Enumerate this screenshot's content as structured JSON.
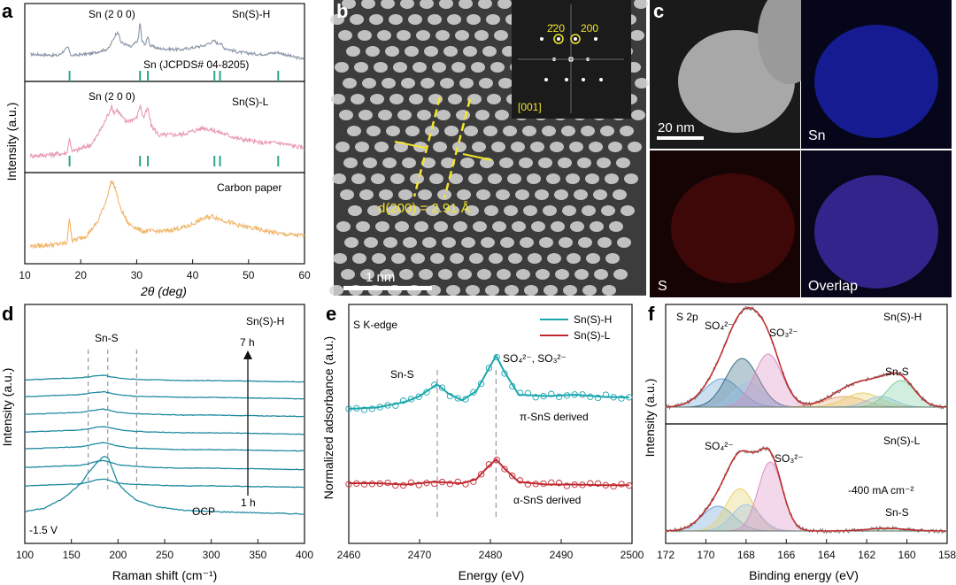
{
  "colors": {
    "bg": "#ffffff",
    "axis": "#111111",
    "dash": "#9a9a9a",
    "xrd_h": "#8a96a8",
    "xrd_l": "#e79ab0",
    "xrd_c": "#f0b466",
    "ref_ticks": "#2aa78a",
    "raman": "#1e8aa0",
    "xas_h": "#1aa6ad",
    "xas_l": "#c0282f",
    "xps_fit": "#c02a2a",
    "xps_data": "#707070",
    "comp_blue": "#6aa4d6",
    "comp_teal": "#3a6d82",
    "comp_pink": "#d98fc4",
    "comp_yellow": "#e6d06a",
    "comp_green": "#7ccfa0",
    "comp_orange": "#e7a878",
    "comp_lightblue": "#9ec4e8",
    "sn_blue": "#1a20a8",
    "s_red": "#8a1010",
    "yellow": "#f2e52d",
    "white": "#ffffff"
  },
  "panel_letters": {
    "a": "a",
    "b": "b",
    "c": "c",
    "d": "d",
    "e": "e",
    "f": "f"
  },
  "chart_data": [
    {
      "panel": "a",
      "type": "line",
      "xlabel": "2θ (deg)",
      "ylabel": "Intensity (a.u.)",
      "xlim": [
        10,
        60
      ],
      "xticks": [
        10,
        20,
        30,
        40,
        50,
        60
      ],
      "annotations": [
        "Sn (2 0 0)",
        "Sn(S)-H",
        "Sn (JCPDS# 04-8205)",
        "Sn (2 0 0)",
        "Sn(S)-L",
        "Carbon paper"
      ],
      "reference_ticks_2theta": [
        18.0,
        30.6,
        32.0,
        43.9,
        44.9,
        55.3
      ],
      "series": [
        {
          "name": "Sn(S)-H",
          "x": [
            12,
            16,
            17.8,
            18.1,
            18.5,
            22,
            25,
            26.2,
            26.6,
            27.2,
            29,
            30.3,
            30.6,
            30.9,
            31.6,
            32,
            32.4,
            34,
            38,
            42,
            43.9,
            44.5,
            44.9,
            45.5,
            48,
            52,
            55.3,
            58,
            60
          ],
          "y": [
            0.3,
            0.28,
            0.45,
            0.3,
            0.28,
            0.32,
            0.42,
            0.7,
            0.78,
            0.55,
            0.45,
            0.6,
            1.0,
            0.58,
            0.5,
            0.68,
            0.48,
            0.42,
            0.4,
            0.48,
            0.58,
            0.52,
            0.55,
            0.44,
            0.35,
            0.3,
            0.34,
            0.25,
            0.2
          ]
        },
        {
          "name": "Sn(S)-L",
          "x": [
            12,
            17.5,
            18.0,
            18.5,
            22,
            24,
            25.5,
            26,
            26.5,
            28,
            30,
            30.6,
            31.2,
            32,
            32.6,
            34,
            38,
            42,
            44,
            48,
            52,
            55.3,
            58,
            60
          ],
          "y": [
            0.05,
            0.08,
            0.28,
            0.1,
            0.2,
            0.45,
            0.7,
            0.62,
            0.66,
            0.5,
            0.55,
            0.72,
            0.55,
            0.68,
            0.45,
            0.32,
            0.33,
            0.42,
            0.38,
            0.28,
            0.22,
            0.22,
            0.18,
            0.15
          ]
        },
        {
          "name": "Carbon paper",
          "x": [
            11,
            15,
            17.5,
            18.0,
            18.5,
            21,
            23,
            24.5,
            25.5,
            26.2,
            27,
            28.5,
            31,
            35,
            39,
            42,
            43.5,
            45,
            48,
            52,
            56,
            60
          ],
          "y": [
            0.08,
            0.1,
            0.12,
            0.45,
            0.15,
            0.22,
            0.4,
            0.68,
            0.95,
            0.85,
            0.6,
            0.38,
            0.28,
            0.28,
            0.34,
            0.45,
            0.48,
            0.44,
            0.36,
            0.3,
            0.24,
            0.22
          ]
        }
      ]
    },
    {
      "panel": "d",
      "type": "line",
      "xlabel": "Raman shift (cm⁻¹)",
      "ylabel": "Intensity (a.u.)",
      "xlim": [
        100,
        400
      ],
      "xticks": [
        100,
        150,
        200,
        250,
        300,
        350,
        400
      ],
      "annotations": [
        "Sn(S)-H",
        "Sn-S",
        "7 h",
        "1 h",
        "OCP",
        "-1.5 V"
      ],
      "dashed_lines_x": [
        168,
        189,
        220
      ],
      "x": [
        100,
        120,
        140,
        160,
        168,
        175,
        185,
        190,
        200,
        210,
        220,
        240,
        270,
        300,
        350,
        400
      ],
      "series": [
        {
          "name": "OCP",
          "y": [
            0.1,
            0.15,
            0.3,
            0.55,
            0.72,
            0.85,
            1.0,
            0.95,
            0.55,
            0.4,
            0.28,
            0.18,
            0.12,
            0.1,
            0.08,
            0.06
          ]
        },
        {
          "y": [
            0.1,
            0.12,
            0.14,
            0.16,
            0.2,
            0.26,
            0.3,
            0.26,
            0.18,
            0.15,
            0.14,
            0.12,
            0.1,
            0.1,
            0.08,
            0.06
          ]
        },
        {
          "y": [
            0.12,
            0.14,
            0.16,
            0.18,
            0.22,
            0.28,
            0.32,
            0.28,
            0.2,
            0.17,
            0.15,
            0.12,
            0.1,
            0.1,
            0.08,
            0.06
          ]
        },
        {
          "y": [
            0.12,
            0.14,
            0.16,
            0.18,
            0.22,
            0.26,
            0.3,
            0.27,
            0.2,
            0.16,
            0.14,
            0.12,
            0.1,
            0.1,
            0.08,
            0.06
          ]
        },
        {
          "y": [
            0.12,
            0.14,
            0.16,
            0.18,
            0.21,
            0.25,
            0.28,
            0.25,
            0.19,
            0.16,
            0.14,
            0.12,
            0.1,
            0.1,
            0.08,
            0.06
          ]
        },
        {
          "y": [
            0.12,
            0.14,
            0.16,
            0.18,
            0.21,
            0.24,
            0.27,
            0.24,
            0.18,
            0.15,
            0.14,
            0.12,
            0.1,
            0.1,
            0.08,
            0.06
          ]
        },
        {
          "y": [
            0.12,
            0.14,
            0.16,
            0.18,
            0.21,
            0.24,
            0.26,
            0.23,
            0.18,
            0.15,
            0.13,
            0.12,
            0.1,
            0.1,
            0.08,
            0.06
          ]
        },
        {
          "y": [
            0.12,
            0.14,
            0.16,
            0.18,
            0.2,
            0.23,
            0.25,
            0.22,
            0.17,
            0.15,
            0.13,
            0.12,
            0.1,
            0.1,
            0.08,
            0.06
          ]
        }
      ]
    },
    {
      "panel": "e",
      "type": "line",
      "xlabel": "Energy (eV)",
      "ylabel": "Normalized adsorbance (a.u.)",
      "xlim": [
        2460,
        2500
      ],
      "xticks": [
        2460,
        2470,
        2480,
        2490,
        2500
      ],
      "annotations": [
        "S K-edge",
        "Sn-S",
        "SO₄²⁻, SO₃²⁻",
        "π-SnS derived",
        "α-SnS derived"
      ],
      "dashed_lines_x": [
        2472.5,
        2480.8
      ],
      "legend": [
        "Sn(S)-H",
        "Sn(S)-L"
      ],
      "series": [
        {
          "name": "Sn(S)-H",
          "x": [
            2460,
            2464,
            2468,
            2470,
            2472.5,
            2474,
            2476,
            2478,
            2479.5,
            2480.8,
            2482,
            2484,
            2488,
            2492,
            2496,
            2500
          ],
          "y": [
            0.1,
            0.12,
            0.2,
            0.28,
            0.45,
            0.32,
            0.22,
            0.35,
            0.62,
            0.85,
            0.62,
            0.3,
            0.28,
            0.3,
            0.27,
            0.26
          ]
        },
        {
          "name": "Sn(S)-L",
          "x": [
            2460,
            2464,
            2468,
            2472,
            2476,
            2478,
            2479.5,
            2480.8,
            2482,
            2484,
            2488,
            2492,
            2496,
            2500
          ],
          "y": [
            0.12,
            0.12,
            0.1,
            0.14,
            0.12,
            0.18,
            0.35,
            0.48,
            0.34,
            0.14,
            0.1,
            0.1,
            0.09,
            0.09
          ]
        }
      ]
    },
    {
      "panel": "f",
      "type": "area",
      "xlabel": "Binding energy (eV)",
      "ylabel": "Intensity (a.u.)",
      "xlim": [
        172,
        158
      ],
      "xticks": [
        172,
        170,
        168,
        166,
        164,
        162,
        160,
        158
      ],
      "annotations": [
        "S 2p",
        "Sn(S)-H",
        "SO₄²⁻",
        "SO₃²⁻",
        "Sn-S",
        "Sn(S)-L",
        "SO₄²⁻",
        "SO₃²⁻",
        "-400 mA cm⁻²",
        "Sn-S"
      ],
      "subplots": [
        {
          "name": "Sn(S)-H",
          "peaks": [
            {
              "center": 169.2,
              "height": 0.32,
              "width": 0.9
            },
            {
              "center": 168.2,
              "height": 0.55,
              "width": 0.8
            },
            {
              "center": 167.9,
              "height": 0.28,
              "width": 0.7
            },
            {
              "center": 166.9,
              "height": 0.6,
              "width": 0.7
            },
            {
              "center": 163.1,
              "height": 0.12,
              "width": 1.0
            },
            {
              "center": 162.2,
              "height": 0.16,
              "width": 0.9
            },
            {
              "center": 161.3,
              "height": 0.12,
              "width": 0.7
            },
            {
              "center": 160.3,
              "height": 0.3,
              "width": 0.7
            }
          ]
        },
        {
          "name": "Sn(S)-L",
          "peaks": [
            {
              "center": 169.4,
              "height": 0.28,
              "width": 0.8
            },
            {
              "center": 168.3,
              "height": 0.48,
              "width": 0.7
            },
            {
              "center": 168.0,
              "height": 0.3,
              "width": 0.7
            },
            {
              "center": 166.8,
              "height": 0.78,
              "width": 0.6
            },
            {
              "center": 161.0,
              "height": 0.03,
              "width": 1.0
            }
          ]
        }
      ]
    }
  ],
  "images": {
    "b": {
      "scale_bar": "1 nm",
      "d_spacing": "d(200) = 2.91 Å",
      "fft_labels": [
        "2̄20",
        "200",
        "[001]"
      ]
    },
    "c": {
      "scale_bar": "20 nm",
      "labels": [
        "Sn",
        "S",
        "Overlap"
      ]
    }
  }
}
